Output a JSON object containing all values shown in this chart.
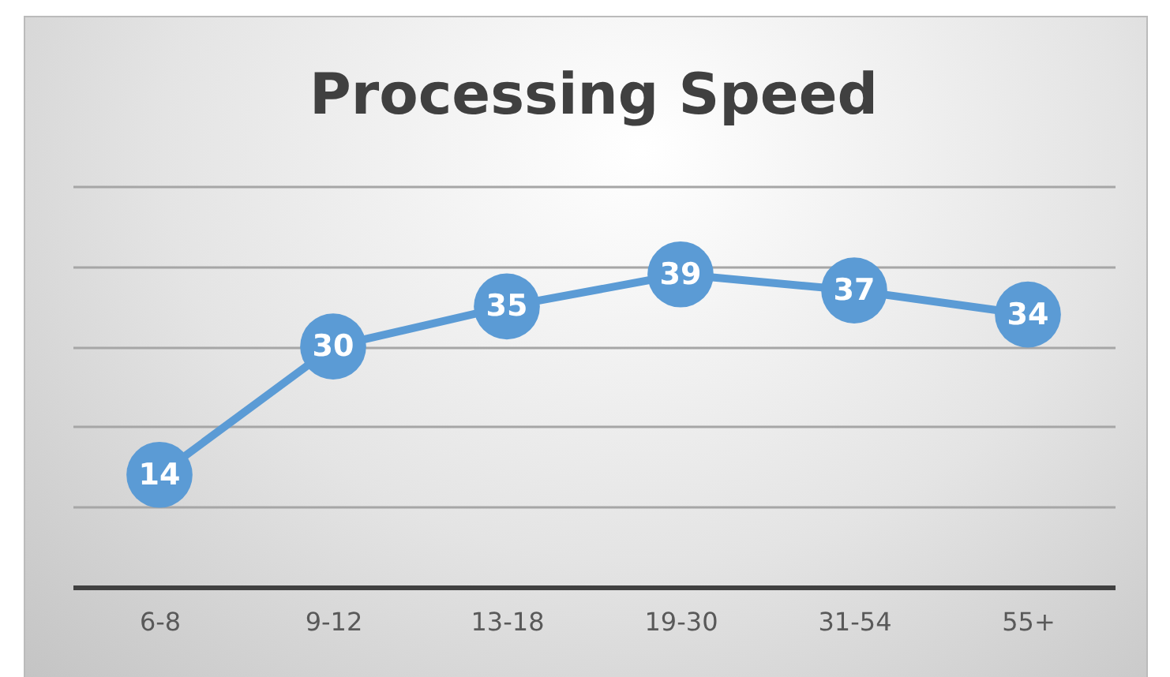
{
  "chart_data": {
    "type": "line",
    "title": "Processing Speed",
    "categories": [
      "6-8",
      "9-12",
      "13-18",
      "19-30",
      "31-54",
      "55+"
    ],
    "series": [
      {
        "color": "#5b9bd5",
        "values": [
          14,
          30,
          35,
          39,
          37,
          34
        ]
      }
    ],
    "ylim": [
      0,
      50
    ],
    "yticks": [
      {
        "value": 0,
        "label": null
      },
      {
        "value": 10,
        "label": null
      },
      {
        "value": 20,
        "label": null
      },
      {
        "value": 30,
        "label": null
      },
      {
        "value": 40,
        "label": null
      },
      {
        "value": 50,
        "label": null
      }
    ],
    "grid": "y",
    "tick_labels": "x",
    "data_labels": true,
    "marker": "circle",
    "line_style": "solid",
    "legend": false
  }
}
